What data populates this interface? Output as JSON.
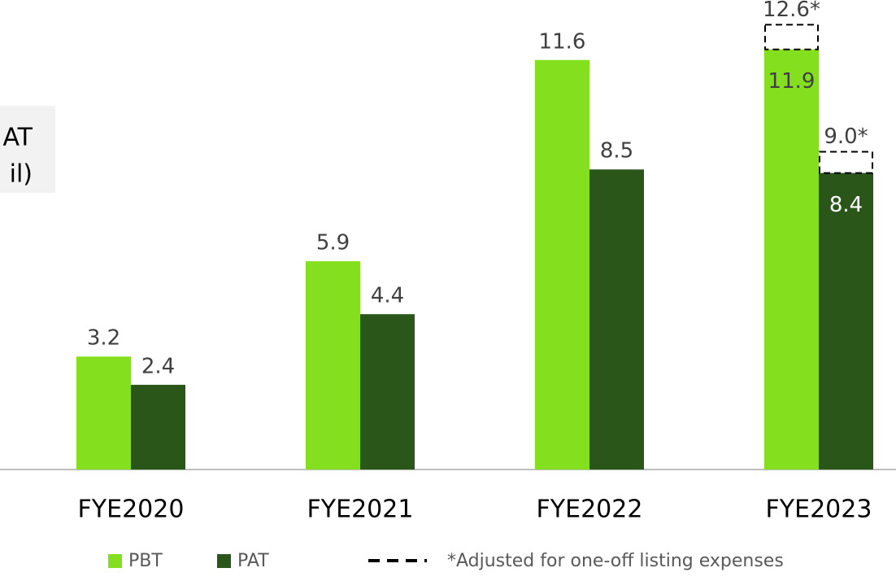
{
  "chart_data": {
    "type": "bar",
    "axis_label_lines": [
      "AT",
      "il)"
    ],
    "categories": [
      "FYE2020",
      "FYE2021",
      "FYE2022",
      "FYE2023"
    ],
    "series": [
      {
        "name": "PBT",
        "color": "#84e01e",
        "values": [
          3.2,
          5.9,
          11.6,
          11.9
        ],
        "adjusted_values": [
          null,
          null,
          null,
          12.6
        ],
        "adjusted_labels": [
          null,
          null,
          null,
          "12.6*"
        ]
      },
      {
        "name": "PAT",
        "color": "#2a5719",
        "values": [
          2.4,
          4.4,
          8.5,
          8.4
        ],
        "adjusted_values": [
          null,
          null,
          null,
          9.0
        ],
        "adjusted_labels": [
          null,
          null,
          null,
          "9.0*"
        ]
      }
    ],
    "note": "*Adjusted for one-off listing expenses",
    "ylim": [
      0,
      13.3
    ]
  }
}
